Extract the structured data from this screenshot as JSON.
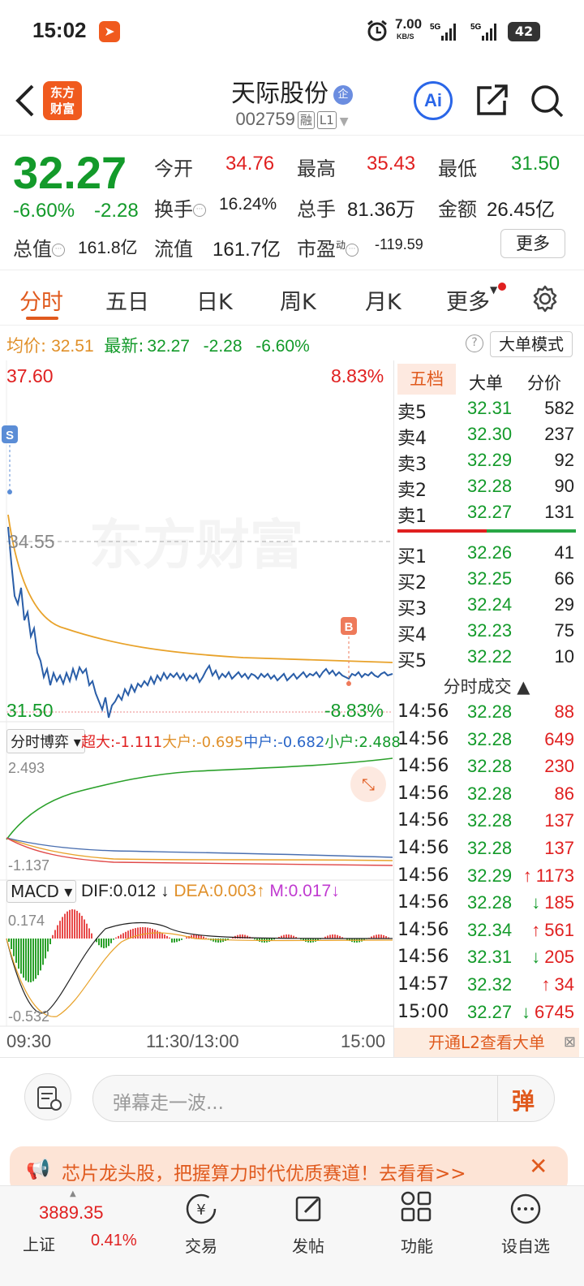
{
  "status_bar": {
    "time": "15:02",
    "net_speed": "7.00",
    "net_unit": "KB/S",
    "battery": "42"
  },
  "header": {
    "app_logo": "东方\n财富",
    "stock_name": "天际股份",
    "name_badge": "企",
    "stock_code": "002759",
    "tag_margin": "融",
    "tag_level": "L1",
    "ai_label": "Ai"
  },
  "quote": {
    "price": "32.27",
    "change_pct": "-6.60%",
    "change": "-2.28",
    "open_label": "今开",
    "open": "34.76",
    "high_label": "最高",
    "high": "35.43",
    "low_label": "最低",
    "low": "31.50",
    "turnover_label": "换手",
    "turnover": "16.24%",
    "volume_label": "总手",
    "volume": "81.36万",
    "amount_label": "金额",
    "amount": "26.45亿",
    "mktcap_label": "总值",
    "mktcap": "161.8亿",
    "float_label": "流值",
    "float": "161.7亿",
    "pe_label": "市盈",
    "pe_sup": "动",
    "pe": "-119.59",
    "more_label": "更多"
  },
  "tabs": [
    "分时",
    "五日",
    "日K",
    "周K",
    "月K",
    "更多"
  ],
  "avg_row": {
    "avg_label": "均价:",
    "avg": "32.51",
    "latest_label": "最新:",
    "latest": "32.27",
    "chg": "-2.28",
    "pct": "-6.60%",
    "help": "?",
    "big_mode": "大单模式"
  },
  "chart": {
    "y_top": "37.60",
    "y_top_pct": "8.83%",
    "y_bot": "31.50",
    "y_bot_pct": "-8.83%",
    "prev_close": "34.55",
    "watermark": "东方财富",
    "marker_s": "S",
    "marker_b": "B",
    "flow_label": "分时博弈",
    "flow_super": "超大:-1.111",
    "flow_big": "大户:-0.695",
    "flow_mid": "中户:-0.682",
    "flow_small": "小户:2.488",
    "flow_max": "2.493",
    "flow_min": "-1.137",
    "macd_label": "MACD",
    "dif": "DIF:0.012",
    "dea": "DEA:0.003",
    "m": "M:0.017",
    "macd_max": "0.174",
    "macd_min": "-0.532",
    "x_start": "09:30",
    "x_mid": "11:30/13:00",
    "x_end": "15:00"
  },
  "right_panel": {
    "tabs": [
      "五档",
      "大单",
      "分价"
    ],
    "asks": [
      {
        "name": "卖5",
        "price": "32.31",
        "vol": "582"
      },
      {
        "name": "卖4",
        "price": "32.30",
        "vol": "237"
      },
      {
        "name": "卖3",
        "price": "32.29",
        "vol": "92"
      },
      {
        "name": "卖2",
        "price": "32.28",
        "vol": "90"
      },
      {
        "name": "卖1",
        "price": "32.27",
        "vol": "131"
      }
    ],
    "bids": [
      {
        "name": "买1",
        "price": "32.26",
        "vol": "41"
      },
      {
        "name": "买2",
        "price": "32.25",
        "vol": "66"
      },
      {
        "name": "买3",
        "price": "32.24",
        "vol": "29"
      },
      {
        "name": "买4",
        "price": "32.23",
        "vol": "75"
      },
      {
        "name": "买5",
        "price": "32.22",
        "vol": "10"
      }
    ],
    "ticks_title": "分时成交",
    "ticks": [
      {
        "t": "14:56",
        "p": "32.28",
        "v": "88",
        "dir": ""
      },
      {
        "t": "14:56",
        "p": "32.28",
        "v": "649",
        "dir": ""
      },
      {
        "t": "14:56",
        "p": "32.28",
        "v": "230",
        "dir": ""
      },
      {
        "t": "14:56",
        "p": "32.28",
        "v": "86",
        "dir": ""
      },
      {
        "t": "14:56",
        "p": "32.28",
        "v": "137",
        "dir": ""
      },
      {
        "t": "14:56",
        "p": "32.28",
        "v": "137",
        "dir": ""
      },
      {
        "t": "14:56",
        "p": "32.29",
        "v": "1173",
        "dir": "↑"
      },
      {
        "t": "14:56",
        "p": "32.28",
        "v": "185",
        "dir": "↓"
      },
      {
        "t": "14:56",
        "p": "32.34",
        "v": "561",
        "dir": "↑"
      },
      {
        "t": "14:56",
        "p": "32.31",
        "v": "205",
        "dir": "↓"
      },
      {
        "t": "14:57",
        "p": "32.32",
        "v": "34",
        "dir": "↑"
      },
      {
        "t": "15:00",
        "p": "32.27",
        "v": "6745",
        "dir": "↓"
      }
    ],
    "l2_promo": "开通L2查看大单"
  },
  "danmu": {
    "placeholder": "弹幕走一波...",
    "send": "弹"
  },
  "banner": {
    "text": "芯片龙头股，把握算力时代优质赛道！去看看>>"
  },
  "bottom_nav": {
    "index_value": "3889.35",
    "index_name": "上证",
    "index_pct": "0.41%",
    "items": [
      "交易",
      "发帖",
      "功能",
      "设自选"
    ]
  }
}
